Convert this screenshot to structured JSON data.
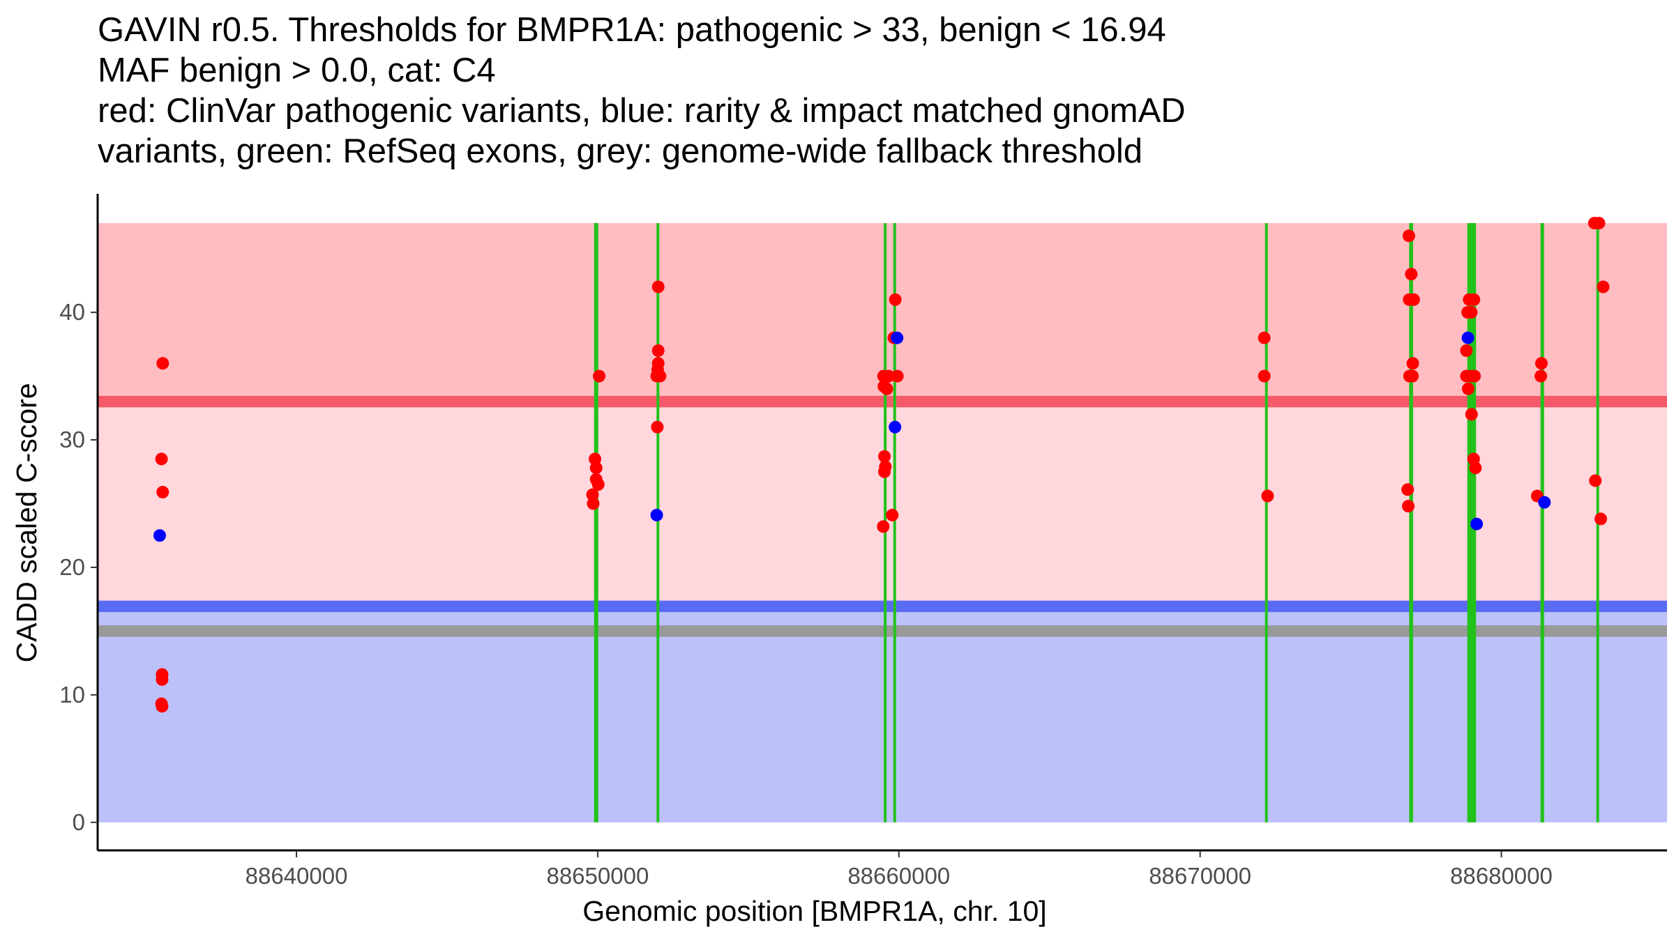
{
  "title_lines": [
    "GAVIN r0.5. Thresholds for BMPR1A: pathogenic > 33, benign < 16.94",
    "MAF benign > 0.0, cat: C4",
    "red: ClinVar pathogenic variants, blue: rarity & impact matched gnomAD",
    "variants, green: RefSeq exons, grey: genome-wide fallback threshold"
  ],
  "chart_data": {
    "type": "scatter",
    "xlabel": "Genomic position [BMPR1A, chr. 10]",
    "ylabel": "CADD scaled C-score",
    "xlim": [
      88633400,
      88685500
    ],
    "ylim": [
      -2.2,
      49.3
    ],
    "x_ticks": [
      88640000,
      88650000,
      88660000,
      88670000,
      88680000
    ],
    "x_tick_labels": [
      "88640000",
      "88650000",
      "88660000",
      "88670000",
      "88680000"
    ],
    "y_ticks": [
      0,
      10,
      20,
      30,
      40
    ],
    "y_tick_labels": [
      "0",
      "10",
      "20",
      "30",
      "40"
    ],
    "region_max": 47,
    "thresholds": {
      "pathogenic": 33,
      "benign": 16.94,
      "fallback": 15,
      "threshold_band_width": 0.9
    },
    "colors": {
      "pathogenic_region": "#FFBDC2",
      "middle_region": "#FFD7DC",
      "benign_region": "#BCC2F9",
      "pathogenic_line": "#F5596A",
      "benign_line": "#5A6BF3",
      "fallback_line": "#999999",
      "exon": "#22C21A",
      "clinvar": "#FF0000",
      "gnomad": "#0000FF"
    },
    "exons": [
      [
        88649880,
        88650020
      ],
      [
        88651960,
        88652040
      ],
      [
        88659510,
        88659580
      ],
      [
        88659830,
        88659890
      ],
      [
        88672170,
        88672230
      ],
      [
        88676940,
        88677070
      ],
      [
        88678870,
        88679160
      ],
      [
        88681300,
        88681420
      ],
      [
        88683160,
        88683240
      ]
    ],
    "series": [
      {
        "name": "ClinVar pathogenic variants",
        "color": "#FF0000",
        "points": [
          [
            88635560,
            36.0
          ],
          [
            88635520,
            28.5
          ],
          [
            88635560,
            25.9
          ],
          [
            88635540,
            11.6
          ],
          [
            88635540,
            11.2
          ],
          [
            88635520,
            9.3
          ],
          [
            88635540,
            9.1
          ],
          [
            88650050,
            35.0
          ],
          [
            88649910,
            28.5
          ],
          [
            88649950,
            27.8
          ],
          [
            88649950,
            26.9
          ],
          [
            88650020,
            26.5
          ],
          [
            88649830,
            25.7
          ],
          [
            88649850,
            25.0
          ],
          [
            88652010,
            42.0
          ],
          [
            88652010,
            37.0
          ],
          [
            88652010,
            36.0
          ],
          [
            88651990,
            35.5
          ],
          [
            88651960,
            35.0
          ],
          [
            88652070,
            35.0
          ],
          [
            88651980,
            31.0
          ],
          [
            88659880,
            41.0
          ],
          [
            88659830,
            38.0
          ],
          [
            88659490,
            35.0
          ],
          [
            88659660,
            35.0
          ],
          [
            88659950,
            35.0
          ],
          [
            88659500,
            34.2
          ],
          [
            88659600,
            34.0
          ],
          [
            88659520,
            28.7
          ],
          [
            88659550,
            27.9
          ],
          [
            88659520,
            27.5
          ],
          [
            88659780,
            24.1
          ],
          [
            88659480,
            23.2
          ],
          [
            88672130,
            38.0
          ],
          [
            88672130,
            35.0
          ],
          [
            88672240,
            25.6
          ],
          [
            88676930,
            46.0
          ],
          [
            88677010,
            43.0
          ],
          [
            88676940,
            41.0
          ],
          [
            88677090,
            41.0
          ],
          [
            88677060,
            36.0
          ],
          [
            88676950,
            35.0
          ],
          [
            88677050,
            35.0
          ],
          [
            88676890,
            26.1
          ],
          [
            88676910,
            24.8
          ],
          [
            88678930,
            41.0
          ],
          [
            88679090,
            41.0
          ],
          [
            88678880,
            40.0
          ],
          [
            88679000,
            40.0
          ],
          [
            88678840,
            37.0
          ],
          [
            88678840,
            35.0
          ],
          [
            88679000,
            35.0
          ],
          [
            88679110,
            35.0
          ],
          [
            88678900,
            34.0
          ],
          [
            88679010,
            32.0
          ],
          [
            88679080,
            28.5
          ],
          [
            88679140,
            27.8
          ],
          [
            88681330,
            36.0
          ],
          [
            88681310,
            35.0
          ],
          [
            88681190,
            25.6
          ],
          [
            88683090,
            47.0
          ],
          [
            88683240,
            47.0
          ],
          [
            88683380,
            42.0
          ],
          [
            88683120,
            26.8
          ],
          [
            88683300,
            23.8
          ]
        ]
      },
      {
        "name": "gnomAD rarity & impact matched variants",
        "color": "#0000FF",
        "points": [
          [
            88635460,
            22.5
          ],
          [
            88651960,
            24.1
          ],
          [
            88659940,
            38.0
          ],
          [
            88659870,
            31.0
          ],
          [
            88678890,
            38.0
          ],
          [
            88679180,
            23.4
          ],
          [
            88681430,
            25.1
          ]
        ]
      }
    ]
  }
}
